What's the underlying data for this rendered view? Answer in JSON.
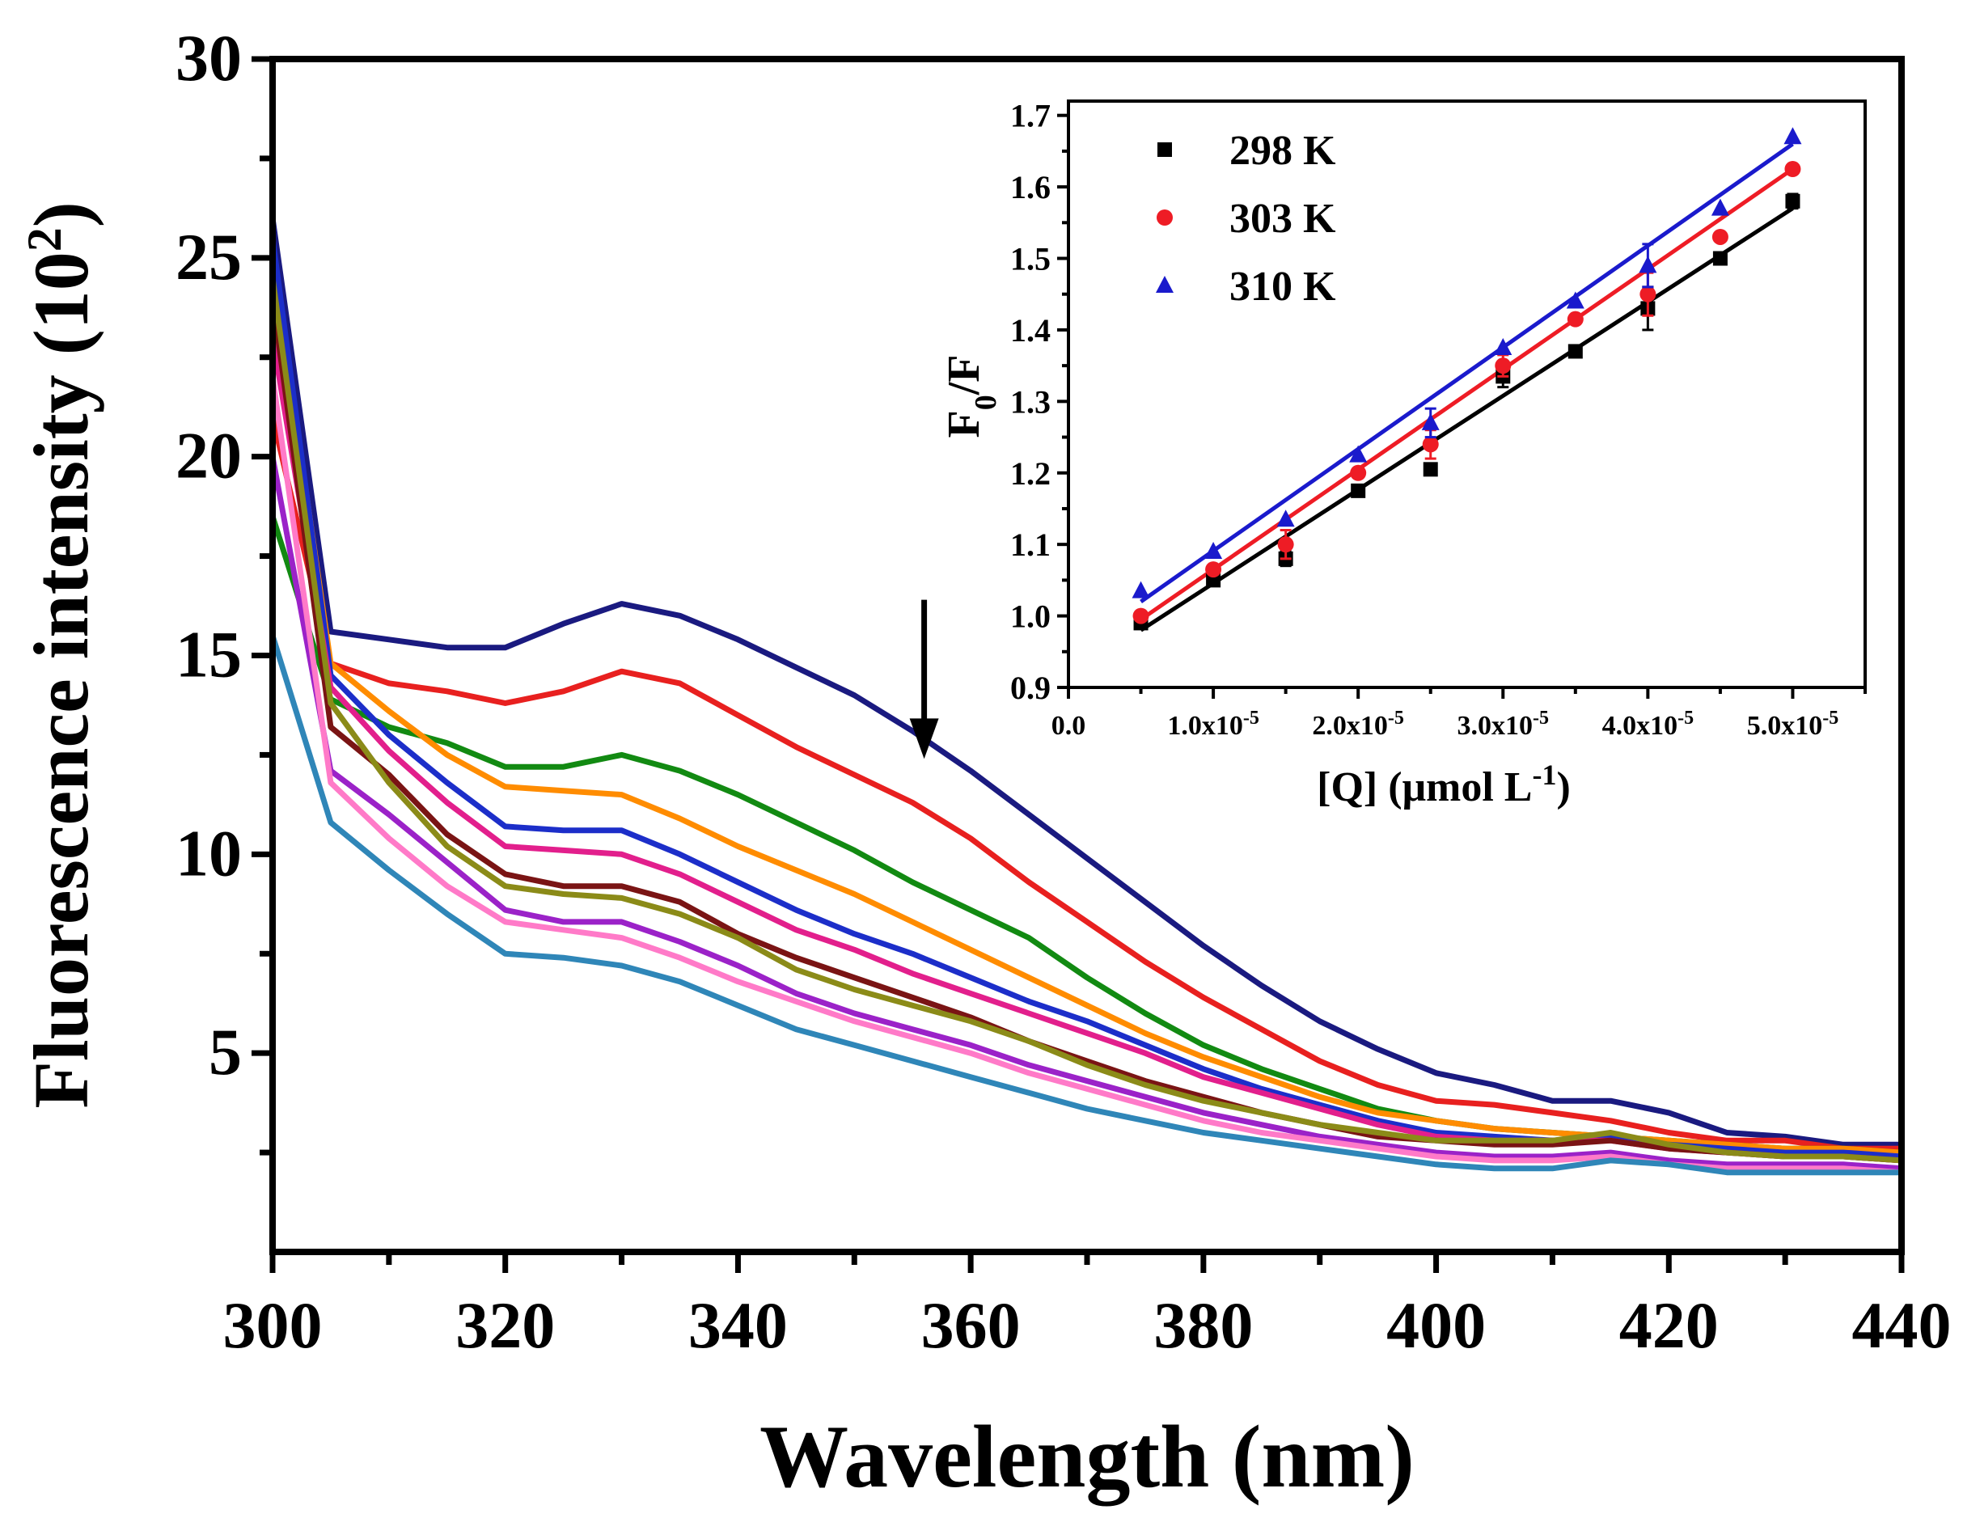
{
  "chart_data": [
    {
      "type": "line",
      "title": "",
      "xlabel": "Wavelength (nm)",
      "ylabel_main": "Fluorescence intensity (10",
      "ylabel_sup": "2",
      "ylabel_close": ")",
      "xlim": [
        300,
        440
      ],
      "ylim": [
        0,
        30
      ],
      "xticks": [
        300,
        320,
        340,
        360,
        380,
        400,
        420,
        440
      ],
      "yticks": [
        5,
        10,
        15,
        20,
        25,
        30
      ],
      "x": [
        300,
        305,
        310,
        315,
        320,
        325,
        330,
        335,
        340,
        345,
        350,
        355,
        360,
        365,
        370,
        375,
        380,
        385,
        390,
        395,
        400,
        405,
        410,
        415,
        420,
        425,
        430,
        435,
        440
      ],
      "series": [
        {
          "name": "navy",
          "color": "#1a1a80",
          "values": [
            26.0,
            15.6,
            15.4,
            15.2,
            15.2,
            15.8,
            16.3,
            16.0,
            15.4,
            14.7,
            14.0,
            13.1,
            12.1,
            11.0,
            9.9,
            8.8,
            7.7,
            6.7,
            5.8,
            5.1,
            4.5,
            4.2,
            3.8,
            3.8,
            3.5,
            3.0,
            2.9,
            2.7,
            2.7
          ]
        },
        {
          "name": "red",
          "color": "#e8201f",
          "values": [
            21.0,
            14.8,
            14.3,
            14.1,
            13.8,
            14.1,
            14.6,
            14.3,
            13.5,
            12.7,
            12.0,
            11.3,
            10.4,
            9.3,
            8.3,
            7.3,
            6.4,
            5.6,
            4.8,
            4.2,
            3.8,
            3.7,
            3.5,
            3.3,
            3.0,
            2.8,
            2.8,
            2.6,
            2.6
          ]
        },
        {
          "name": "green",
          "color": "#128a12",
          "values": [
            18.5,
            13.9,
            13.2,
            12.8,
            12.2,
            12.2,
            12.5,
            12.1,
            11.5,
            10.8,
            10.1,
            9.3,
            8.6,
            7.9,
            6.9,
            6.0,
            5.2,
            4.6,
            4.1,
            3.6,
            3.3,
            3.1,
            3.0,
            2.9,
            2.8,
            2.7,
            2.6,
            2.6,
            2.5
          ]
        },
        {
          "name": "orange",
          "color": "#ff8c00",
          "values": [
            25.0,
            14.8,
            13.6,
            12.5,
            11.7,
            11.6,
            11.5,
            10.9,
            10.2,
            9.6,
            9.0,
            8.3,
            7.6,
            6.9,
            6.2,
            5.5,
            4.9,
            4.4,
            3.9,
            3.5,
            3.3,
            3.1,
            3.0,
            2.9,
            2.8,
            2.7,
            2.6,
            2.6,
            2.5
          ]
        },
        {
          "name": "blue",
          "color": "#1c2ec9",
          "values": [
            25.5,
            14.5,
            13.0,
            11.8,
            10.7,
            10.6,
            10.6,
            10.0,
            9.3,
            8.6,
            8.0,
            7.5,
            6.9,
            6.3,
            5.8,
            5.2,
            4.6,
            4.1,
            3.7,
            3.3,
            3.0,
            2.9,
            2.8,
            2.9,
            2.7,
            2.6,
            2.5,
            2.5,
            2.4
          ]
        },
        {
          "name": "magenta",
          "color": "#e21f8c",
          "values": [
            23.0,
            14.2,
            12.6,
            11.3,
            10.2,
            10.1,
            10.0,
            9.5,
            8.8,
            8.1,
            7.6,
            7.0,
            6.5,
            6.0,
            5.5,
            5.0,
            4.4,
            4.0,
            3.6,
            3.2,
            2.9,
            2.8,
            2.8,
            2.8,
            2.6,
            2.5,
            2.4,
            2.4,
            2.3
          ]
        },
        {
          "name": "maroon",
          "color": "#7a1414",
          "values": [
            24.0,
            13.2,
            12.0,
            10.5,
            9.5,
            9.2,
            9.2,
            8.8,
            8.0,
            7.4,
            6.9,
            6.4,
            5.9,
            5.3,
            4.8,
            4.3,
            3.9,
            3.5,
            3.2,
            2.9,
            2.8,
            2.7,
            2.7,
            2.8,
            2.6,
            2.5,
            2.4,
            2.4,
            2.3
          ]
        },
        {
          "name": "olive",
          "color": "#8b8b18",
          "values": [
            24.5,
            13.8,
            11.8,
            10.2,
            9.2,
            9.0,
            8.9,
            8.5,
            7.9,
            7.1,
            6.6,
            6.2,
            5.8,
            5.3,
            4.7,
            4.2,
            3.8,
            3.5,
            3.2,
            3.0,
            2.8,
            2.8,
            2.8,
            3.0,
            2.7,
            2.5,
            2.4,
            2.4,
            2.3
          ]
        },
        {
          "name": "purple",
          "color": "#9b22c8",
          "values": [
            20.0,
            12.1,
            11.0,
            9.8,
            8.6,
            8.3,
            8.3,
            7.8,
            7.2,
            6.5,
            6.0,
            5.6,
            5.2,
            4.7,
            4.3,
            3.9,
            3.5,
            3.2,
            2.9,
            2.7,
            2.5,
            2.4,
            2.4,
            2.5,
            2.3,
            2.2,
            2.2,
            2.2,
            2.1
          ]
        },
        {
          "name": "pink",
          "color": "#ff7ac8",
          "values": [
            22.0,
            11.8,
            10.4,
            9.2,
            8.3,
            8.1,
            7.9,
            7.4,
            6.8,
            6.3,
            5.8,
            5.4,
            5.0,
            4.5,
            4.1,
            3.7,
            3.3,
            3.0,
            2.8,
            2.6,
            2.4,
            2.3,
            2.3,
            2.4,
            2.2,
            2.1,
            2.1,
            2.1,
            2.0
          ]
        },
        {
          "name": "steelblue",
          "color": "#2f86b8",
          "values": [
            15.5,
            10.8,
            9.6,
            8.5,
            7.5,
            7.4,
            7.2,
            6.8,
            6.2,
            5.6,
            5.2,
            4.8,
            4.4,
            4.0,
            3.6,
            3.3,
            3.0,
            2.8,
            2.6,
            2.4,
            2.2,
            2.1,
            2.1,
            2.3,
            2.2,
            2.0,
            2.0,
            2.0,
            2.0
          ]
        }
      ],
      "annotation": {
        "type": "down-arrow",
        "x": 356,
        "y_top": 16.4,
        "y_bottom": 12.4
      }
    },
    {
      "type": "scatter",
      "title": "",
      "xlabel_main": "[Q] (μmol L",
      "xlabel_sup": "-1",
      "xlabel_close": ")",
      "ylabel_main": "F",
      "ylabel_sub": "0",
      "ylabel_close": "/F",
      "xlim": [
        0,
        5.5e-05
      ],
      "ylim": [
        0.9,
        1.72
      ],
      "xticks": [
        0,
        1e-05,
        2e-05,
        3e-05,
        4e-05,
        5e-05
      ],
      "xtick_labels": [
        {
          "main": "0.0",
          "sup": ""
        },
        {
          "main": "1.0x10",
          "sup": "-5"
        },
        {
          "main": "2.0x10",
          "sup": "-5"
        },
        {
          "main": "3.0x10",
          "sup": "-5"
        },
        {
          "main": "4.0x10",
          "sup": "-5"
        },
        {
          "main": "5.0x10",
          "sup": "-5"
        }
      ],
      "yticks": [
        0.9,
        1.0,
        1.1,
        1.2,
        1.3,
        1.4,
        1.5,
        1.6,
        1.7
      ],
      "ytick_labels": [
        "0.9",
        "1.0",
        "1.1",
        "1.2",
        "1.3",
        "1.4",
        "1.5",
        "1.6",
        "1.7"
      ],
      "legend_position": "top-left",
      "series": [
        {
          "name": "298 K",
          "color": "#000000",
          "marker": "square",
          "x": [
            5e-06,
            1e-05,
            1.5e-05,
            2e-05,
            2.5e-05,
            3e-05,
            3.5e-05,
            4e-05,
            4.5e-05,
            5e-05
          ],
          "values": [
            0.99,
            1.05,
            1.08,
            1.175,
            1.205,
            1.335,
            1.37,
            1.43,
            1.5,
            1.58
          ],
          "errors": [
            0.0,
            0.0,
            0.01,
            0.0,
            0.0,
            0.015,
            0.0,
            0.03,
            0.0,
            0.01
          ],
          "fit": [
            0.98,
            1.57
          ]
        },
        {
          "name": "303 K",
          "color": "#ee1c25",
          "marker": "circle",
          "x": [
            5e-06,
            1e-05,
            1.5e-05,
            2e-05,
            2.5e-05,
            3e-05,
            3.5e-05,
            4e-05,
            4.5e-05,
            5e-05
          ],
          "values": [
            1.0,
            1.065,
            1.1,
            1.2,
            1.24,
            1.35,
            1.415,
            1.45,
            1.53,
            1.625
          ],
          "errors": [
            0.0,
            0.0,
            0.02,
            0.0,
            0.02,
            0.015,
            0.0,
            0.03,
            0.0,
            0.0
          ],
          "fit": [
            0.995,
            1.625
          ]
        },
        {
          "name": "310 K",
          "color": "#1a1acc",
          "marker": "triangle",
          "x": [
            5e-06,
            1e-05,
            1.5e-05,
            2e-05,
            2.5e-05,
            3e-05,
            3.5e-05,
            4e-05,
            4.5e-05,
            5e-05
          ],
          "values": [
            1.035,
            1.09,
            1.135,
            1.225,
            1.27,
            1.375,
            1.44,
            1.49,
            1.57,
            1.67
          ],
          "errors": [
            0.0,
            0.0,
            0.0,
            0.0,
            0.02,
            0.0,
            0.0,
            0.03,
            0.0,
            0.0
          ],
          "fit": [
            1.02,
            1.66
          ]
        }
      ]
    }
  ]
}
